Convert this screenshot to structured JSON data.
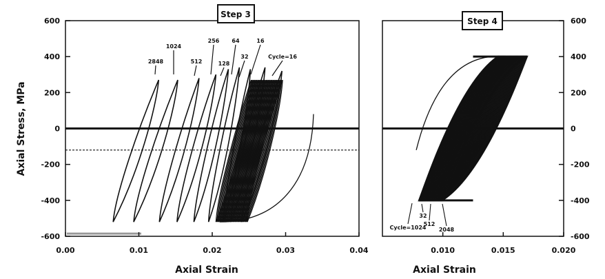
{
  "chart_data": [
    {
      "type": "line",
      "title": "Step 3",
      "xlabel": "Axial Strain",
      "ylabel": "Axial Stress, MPa",
      "xlim": [
        0.0,
        0.04
      ],
      "ylim": [
        -600,
        600
      ],
      "x_tick_labels": [
        "0.00",
        "0.01",
        "0.02",
        "0.03",
        "0.04"
      ],
      "y_tick_labels": [
        "600",
        "400",
        "200",
        "0",
        "-200",
        "-400",
        "-600"
      ],
      "cycle_labels": [
        "2848",
        "1024",
        "512",
        "256",
        "64",
        "16",
        "32",
        "128",
        "Cycle=16"
      ],
      "loops": [
        {
          "label": "2848",
          "x": [
            0.0065,
            0.0127
          ],
          "y": [
            -520,
            270
          ]
        },
        {
          "label": "1024",
          "x": [
            0.0093,
            0.0153
          ],
          "y": [
            -520,
            270
          ]
        },
        {
          "label": "512",
          "x": [
            0.0128,
            0.0182
          ],
          "y": [
            -520,
            280
          ]
        },
        {
          "label": "128",
          "x": [
            0.0152,
            0.0205
          ],
          "y": [
            -520,
            300
          ]
        },
        {
          "label": "256",
          "x": [
            0.0175,
            0.0222
          ],
          "y": [
            -520,
            330
          ]
        },
        {
          "label": "64",
          "x": [
            0.0195,
            0.0237
          ],
          "y": [
            -520,
            340
          ]
        },
        {
          "label": "32",
          "x": [
            0.0215,
            0.0252
          ],
          "y": [
            -520,
            330
          ]
        },
        {
          "label": "16",
          "x": [
            0.0225,
            0.0272
          ],
          "y": [
            -520,
            340
          ]
        },
        {
          "label": "Cycle=16",
          "x": [
            0.024,
            0.0295
          ],
          "y": [
            -520,
            320
          ]
        }
      ],
      "reference_lines": [
        0,
        -120
      ],
      "grid": false
    },
    {
      "type": "line",
      "title": "Step 4",
      "xlabel": "Axial Strain",
      "ylabel": "",
      "xlim": [
        0.005,
        0.02
      ],
      "ylim": [
        -600,
        600
      ],
      "x_tick_labels": [
        "0.010",
        "0.015",
        "0.020"
      ],
      "y_tick_labels": [
        "600",
        "400",
        "200",
        "0",
        "-200",
        "-400",
        "-600"
      ],
      "cycle_labels": [
        "Cycle=1024",
        "32",
        "512",
        "2048"
      ],
      "band": {
        "x_low": [
          0.008,
          0.01
        ],
        "x_high": [
          0.0145,
          0.017
        ],
        "y": [
          -400,
          400
        ]
      },
      "reference_lines": [
        0
      ],
      "grid": false
    }
  ]
}
